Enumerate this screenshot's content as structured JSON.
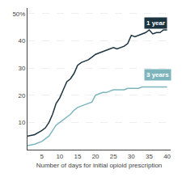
{
  "chart_data": {
    "type": "line",
    "xlabel": "Number of days for initial opioid prescription",
    "x": [
      1,
      3,
      5,
      6,
      7,
      8,
      9,
      10,
      11,
      12,
      13,
      14,
      15,
      16,
      17,
      18,
      19,
      20,
      21,
      22,
      23,
      24,
      25,
      26,
      27,
      28,
      29,
      30,
      31,
      32,
      33,
      34,
      35,
      36,
      37,
      38,
      39,
      40
    ],
    "series": [
      {
        "name": "1 year",
        "color": "#1c3340",
        "values": [
          5,
          5.5,
          7,
          8,
          10,
          13,
          17,
          19,
          22,
          25,
          26,
          28,
          31,
          32,
          32.5,
          33,
          34,
          35,
          35.5,
          36,
          36.5,
          37,
          37.5,
          37,
          37.5,
          38,
          39,
          42,
          41.5,
          42,
          42.5,
          43,
          44,
          42.5,
          43,
          43,
          44,
          44
        ]
      },
      {
        "name": "3 years",
        "color": "#7eb5bd",
        "values": [
          1.5,
          2,
          3,
          4,
          5,
          7,
          9,
          10,
          11,
          12,
          13,
          14.5,
          15.5,
          16,
          16.5,
          17,
          17.5,
          20,
          20.5,
          21,
          21,
          21.5,
          22,
          22,
          22,
          22,
          22.5,
          22.5,
          22.5,
          22.5,
          23,
          23,
          23,
          23,
          23,
          23,
          23,
          23
        ]
      }
    ],
    "annotations": [
      {
        "text": "1 year",
        "x": 33.5,
        "y": 46.5,
        "color": "#1c3340"
      },
      {
        "text": "3 years",
        "x": 33.5,
        "y": 27.5,
        "color": "#7eb5bd"
      }
    ],
    "xlim": [
      1,
      41
    ],
    "xticks": [
      5,
      10,
      15,
      20,
      25,
      30,
      35,
      40
    ],
    "ylim": [
      0,
      52
    ],
    "yticks": [
      {
        "value": 0,
        "label": ""
      },
      10,
      20,
      30,
      40,
      {
        "value": 50,
        "label": "50%"
      }
    ],
    "grid": true
  }
}
